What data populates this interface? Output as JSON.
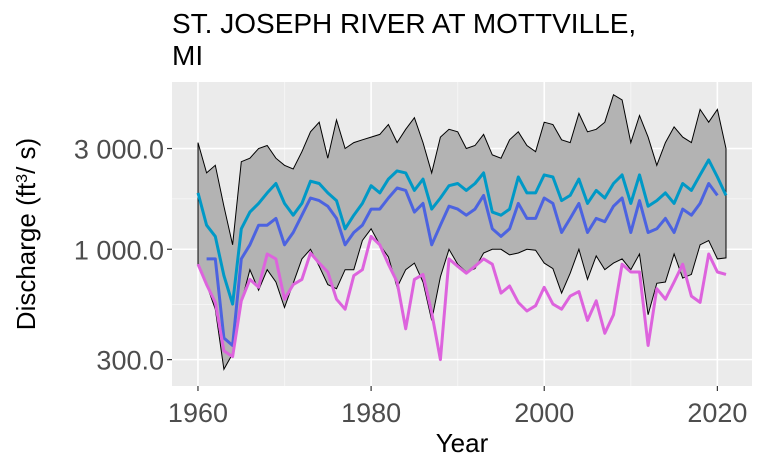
{
  "chart_data": {
    "type": "line",
    "title_line1": "ST. JOSEPH RIVER AT MOTTVILLE,",
    "title_line2": "MI",
    "xlabel": "Year",
    "ylabel_main": "Discharge (ft",
    "ylabel_sup": "3",
    "ylabel_end": "/ s)",
    "y_scale": "log",
    "xlim": [
      1957,
      2024
    ],
    "ylim": [
      225,
      6200
    ],
    "grid": true,
    "x_ticks": [
      1960,
      1980,
      2000,
      2020
    ],
    "x_tick_labels": [
      "1960",
      "1980",
      "2000",
      "2020"
    ],
    "y_ticks": [
      300,
      1000,
      3000
    ],
    "y_tick_labels": [
      "300.0",
      "1 000.0",
      "3 000.0"
    ],
    "x": [
      1960,
      1961,
      1962,
      1963,
      1964,
      1965,
      1966,
      1967,
      1968,
      1969,
      1970,
      1971,
      1972,
      1973,
      1974,
      1975,
      1976,
      1977,
      1978,
      1979,
      1980,
      1981,
      1982,
      1983,
      1984,
      1985,
      1986,
      1987,
      1988,
      1989,
      1990,
      1991,
      1992,
      1993,
      1994,
      1995,
      1996,
      1997,
      1998,
      1999,
      2000,
      2001,
      2002,
      2003,
      2004,
      2005,
      2006,
      2007,
      2008,
      2009,
      2010,
      2011,
      2012,
      2013,
      2014,
      2015,
      2016,
      2017,
      2018,
      2019,
      2020,
      2021
    ],
    "band_upper": [
      3200,
      2300,
      2500,
      1600,
      1050,
      2600,
      2700,
      3000,
      3100,
      2700,
      2500,
      2400,
      2900,
      3600,
      4000,
      2700,
      4100,
      3000,
      3200,
      3300,
      3400,
      3500,
      3900,
      3200,
      3700,
      4200,
      3200,
      2300,
      3400,
      3700,
      3600,
      3000,
      3100,
      3500,
      2800,
      2700,
      3300,
      3600,
      3100,
      2900,
      4000,
      3900,
      3300,
      3200,
      4400,
      3600,
      3700,
      4000,
      5400,
      5100,
      3200,
      4300,
      3400,
      2500,
      3200,
      3800,
      3400,
      3200,
      4600,
      4000,
      4600,
      3000
    ],
    "band_lower": [
      850,
      680,
      520,
      270,
      320,
      560,
      800,
      640,
      800,
      700,
      530,
      690,
      900,
      1000,
      830,
      680,
      650,
      800,
      800,
      1100,
      1250,
      1050,
      920,
      660,
      800,
      860,
      700,
      460,
      740,
      1000,
      850,
      780,
      810,
      960,
      1000,
      1000,
      940,
      960,
      1000,
      990,
      860,
      810,
      620,
      770,
      1000,
      720,
      930,
      800,
      860,
      900,
      800,
      950,
      490,
      690,
      700,
      950,
      730,
      760,
      1050,
      1100,
      900,
      910
    ],
    "series": [
      {
        "color": "#0099c6",
        "values": [
          1850,
          1300,
          1150,
          750,
          550,
          1250,
          1500,
          1650,
          1850,
          2050,
          1650,
          1450,
          1650,
          2100,
          2050,
          1850,
          1700,
          1250,
          1450,
          1650,
          2000,
          1850,
          2150,
          2350,
          2300,
          1900,
          2150,
          1550,
          1750,
          2000,
          2050,
          1900,
          2050,
          2300,
          1500,
          1450,
          1550,
          2200,
          1850,
          1850,
          2250,
          2200,
          1700,
          1800,
          2150,
          1650,
          1900,
          1750,
          2050,
          2250,
          1650,
          2250,
          1600,
          1700,
          1850,
          1650,
          2050,
          1900,
          2250,
          2650,
          2200,
          1800
        ]
      },
      {
        "color": "#4c63e0",
        "values": [
          null,
          900,
          900,
          380,
          350,
          900,
          1050,
          1300,
          1300,
          1400,
          1050,
          1200,
          1450,
          1750,
          1700,
          1600,
          1400,
          1050,
          1200,
          1300,
          1550,
          1550,
          1750,
          1950,
          1900,
          1500,
          1650,
          1050,
          1300,
          1600,
          1550,
          1450,
          1550,
          1800,
          1250,
          1150,
          1250,
          1650,
          1400,
          1400,
          1750,
          1650,
          1200,
          1400,
          1650,
          1200,
          1400,
          1350,
          1600,
          1750,
          1200,
          1700,
          1200,
          1250,
          1400,
          1200,
          1550,
          1450,
          1650,
          2050,
          1800,
          null
        ]
      },
      {
        "color": "#dd63dd",
        "values": [
          850,
          680,
          560,
          330,
          310,
          570,
          720,
          660,
          950,
          900,
          580,
          680,
          720,
          960,
          860,
          780,
          580,
          520,
          750,
          800,
          1150,
          1050,
          850,
          700,
          420,
          720,
          760,
          500,
          300,
          900,
          830,
          770,
          830,
          900,
          850,
          620,
          670,
          560,
          510,
          540,
          660,
          550,
          520,
          600,
          630,
          460,
          570,
          400,
          490,
          850,
          780,
          780,
          350,
          650,
          580,
          700,
          850,
          600,
          560,
          950,
          780,
          760
        ]
      }
    ]
  }
}
